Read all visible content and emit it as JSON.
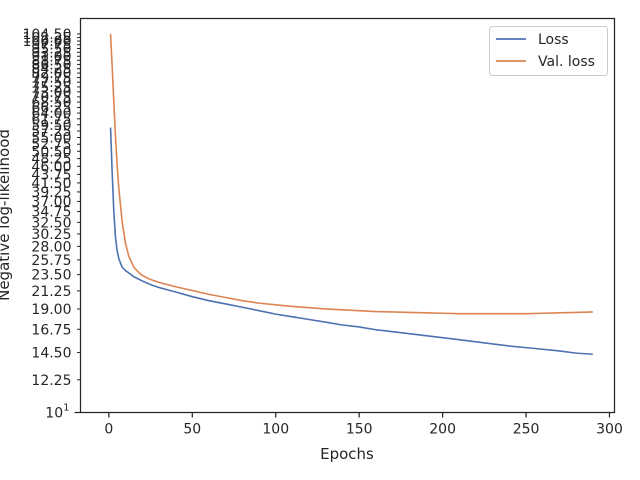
{
  "chart_data": {
    "type": "line",
    "title": "",
    "xlabel": "Epochs",
    "ylabel": "Negative log-likelihood",
    "yscale": "log",
    "xlim": [
      -17,
      303
    ],
    "ylim": [
      10,
      115
    ],
    "grid": false,
    "legend_position": "top-right",
    "x_ticks": [
      0,
      50,
      100,
      150,
      200,
      250,
      300
    ],
    "y_minor_ticks": [
      "12.25",
      "14.50",
      "16.75",
      "19.00",
      "21.25",
      "23.50",
      "25.75",
      "28.00",
      "30.25",
      "32.50",
      "34.75",
      "37.00",
      "39.25",
      "41.50",
      "43.75",
      "46.00",
      "48.25",
      "50.50",
      "52.75",
      "55.00",
      "57.25",
      "59.50",
      "61.75",
      "64.00",
      "66.25",
      "68.50",
      "70.75",
      "73.00",
      "75.25",
      "77.50",
      "79.75",
      "82.00",
      "84.25",
      "86.50",
      "88.75",
      "91.00",
      "93.25",
      "95.50",
      "97.75",
      "100.00",
      "102.25",
      "104.50"
    ],
    "y_major_ticks": [
      {
        "value": 10,
        "base": "10",
        "exp": "1"
      }
    ],
    "series": [
      {
        "name": "Loss",
        "color": "#4c72b0",
        "x": [
          1,
          2,
          3,
          4,
          5,
          6,
          8,
          10,
          15,
          20,
          25,
          30,
          40,
          50,
          60,
          70,
          80,
          90,
          100,
          110,
          120,
          130,
          140,
          150,
          160,
          170,
          180,
          190,
          200,
          210,
          220,
          230,
          240,
          250,
          260,
          270,
          280,
          290
        ],
        "y": [
          58.5,
          44,
          34.5,
          29.5,
          27.2,
          25.9,
          24.6,
          24.1,
          23.2,
          22.6,
          22.1,
          21.7,
          21.1,
          20.5,
          20.0,
          19.6,
          19.2,
          18.8,
          18.4,
          18.1,
          17.8,
          17.5,
          17.2,
          17.0,
          16.7,
          16.5,
          16.3,
          16.1,
          15.9,
          15.7,
          15.5,
          15.3,
          15.1,
          14.95,
          14.8,
          14.65,
          14.45,
          14.35
        ]
      },
      {
        "name": "Val. loss",
        "color": "#dd8452",
        "x": [
          1,
          2,
          3,
          4,
          5,
          6,
          8,
          10,
          12,
          15,
          18,
          20,
          25,
          30,
          40,
          50,
          60,
          70,
          80,
          90,
          100,
          110,
          120,
          130,
          140,
          150,
          160,
          170,
          180,
          190,
          200,
          210,
          220,
          230,
          240,
          250,
          260,
          270,
          280,
          290
        ],
        "y": [
          104.5,
          85,
          68,
          55,
          46,
          40,
          32.5,
          28.5,
          26.3,
          24.6,
          23.8,
          23.4,
          22.8,
          22.4,
          21.8,
          21.3,
          20.8,
          20.4,
          20.0,
          19.7,
          19.5,
          19.3,
          19.15,
          19.0,
          18.9,
          18.8,
          18.7,
          18.65,
          18.6,
          18.55,
          18.5,
          18.45,
          18.45,
          18.45,
          18.45,
          18.45,
          18.5,
          18.55,
          18.6,
          18.65
        ]
      }
    ]
  }
}
